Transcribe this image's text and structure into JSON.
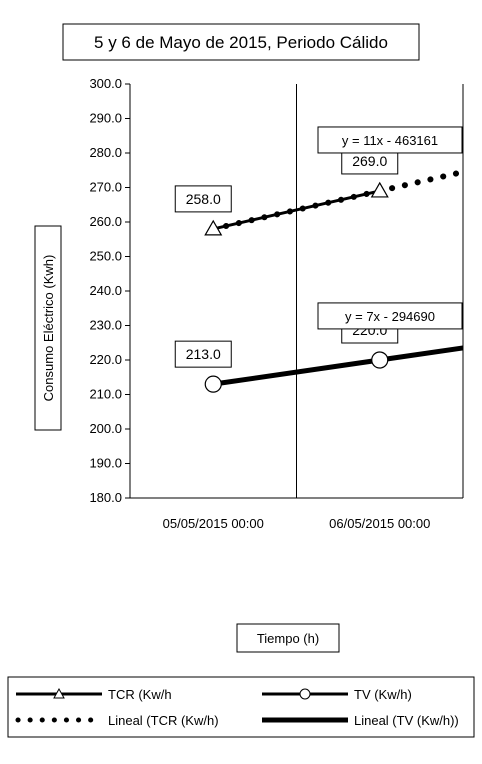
{
  "chart_data": {
    "type": "line",
    "title": "5 y 6 de Mayo de 2015, Periodo Cálido",
    "xlabel": "Tiempo (h)",
    "ylabel": "Consumo Eléctrico (Kwh)",
    "categories": [
      "05/05/2015 00:00",
      "06/05/2015 00:00"
    ],
    "ylim": [
      180,
      300
    ],
    "ytick_step": 10,
    "ytick_labels": [
      "180.0",
      "190.0",
      "200.0",
      "210.0",
      "220.0",
      "230.0",
      "240.0",
      "250.0",
      "260.0",
      "270.0",
      "280.0",
      "290.0",
      "300.0"
    ],
    "grid": "vertical-only",
    "legend_position": "bottom",
    "series": [
      {
        "name": "TCR (Kw/h",
        "values": [
          258.0,
          269.0
        ],
        "data_labels": [
          "258.0",
          "269.0"
        ],
        "marker": "triangle",
        "color": "#000000"
      },
      {
        "name": "TV (Kw/h)",
        "values": [
          213.0,
          220.0
        ],
        "data_labels": [
          "213.0",
          "220.0"
        ],
        "marker": "circle",
        "color": "#000000"
      }
    ],
    "trendlines": [
      {
        "name": "Lineal (TCR (Kw/h)",
        "style": "dotted",
        "start": 258.0,
        "slope_per_day": 11,
        "equation": "y = 11x - 463161"
      },
      {
        "name": "Lineal (TV (Kw/h))",
        "style": "solid",
        "start": 213.0,
        "slope_per_day": 7,
        "equation": "y = 7x - 294690"
      }
    ]
  }
}
